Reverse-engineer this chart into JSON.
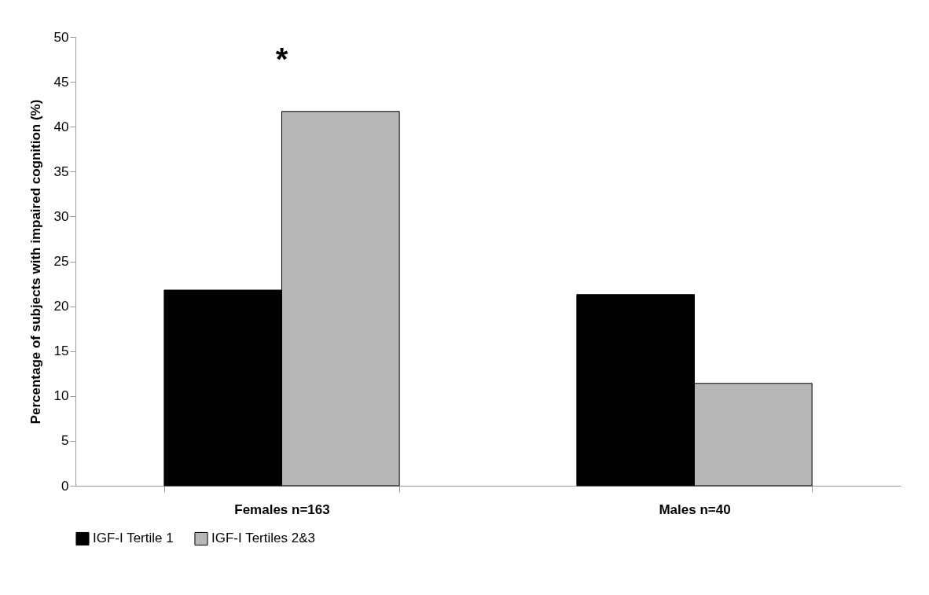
{
  "chart_data": {
    "type": "bar",
    "ylabel": "Percentage of subjects with impaired cognition (%)",
    "categories": [
      "Females\nn=163",
      "Males\nn=40"
    ],
    "series": [
      {
        "name": "IGF-I Tertile 1",
        "color": "#000000",
        "values": [
          21.8,
          21.3
        ]
      },
      {
        "name": "IGF-I Tertiles 2&3",
        "color": "#b7b7b7",
        "values": [
          41.7,
          11.4
        ]
      }
    ],
    "ylim": [
      0,
      50
    ],
    "yticks": [
      0,
      5,
      10,
      15,
      20,
      25,
      30,
      35,
      40,
      45,
      50
    ],
    "annotations": [
      "*"
    ],
    "legend": "bottom",
    "grid": false
  }
}
